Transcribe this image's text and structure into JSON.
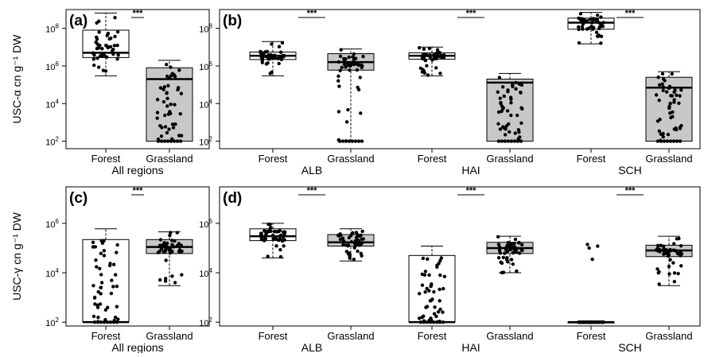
{
  "chart_data": [
    {
      "panel": "(a)",
      "type": "box",
      "ylabel": "USC-α cn g⁻¹ DW",
      "yscale": "log",
      "ylim": [
        40,
        1000000000
      ],
      "yticks": [
        {
          "v": 100,
          "e": "2"
        },
        {
          "v": 10000,
          "e": "4"
        },
        {
          "v": 1000000,
          "e": "6"
        },
        {
          "v": 100000000,
          "e": "8"
        }
      ],
      "groups": [
        {
          "label": "All regions",
          "sig": "***",
          "boxes": [
            {
              "category": "Forest",
              "fill": "#ffffff",
              "whisker_low": 300000,
              "q1": 2800000,
              "median": 5000000,
              "q3": 80000000,
              "whisker_high": 650000000,
              "low_points": []
            },
            {
              "category": "Grassland",
              "fill": "#c8c8c8",
              "whisker_low": 100,
              "q1": 100,
              "median": 200000,
              "q3": 800000,
              "whisker_high": 2000000,
              "low_points": [
                100
              ]
            }
          ]
        }
      ]
    },
    {
      "panel": "(b)",
      "type": "box",
      "yscale": "log",
      "ylim": [
        40,
        1000000000
      ],
      "yticks": [
        {
          "v": 100,
          "e": "2"
        },
        {
          "v": 10000,
          "e": "4"
        },
        {
          "v": 1000000,
          "e": "6"
        },
        {
          "v": 100000000,
          "e": "8"
        }
      ],
      "groups": [
        {
          "label": "ALB",
          "sig": "***",
          "boxes": [
            {
              "category": "Forest",
              "fill": "#ffffff",
              "whisker_low": 300000,
              "q1": 2200000,
              "median": 3500000,
              "q3": 5500000,
              "whisker_high": 20000000,
              "low_points": []
            },
            {
              "category": "Grassland",
              "fill": "#c8c8c8",
              "whisker_low": 100,
              "q1": 600000,
              "median": 1600000,
              "q3": 4500000,
              "whisker_high": 8000000,
              "low_points": [
                100
              ]
            }
          ]
        },
        {
          "label": "HAI",
          "sig": "***",
          "boxes": [
            {
              "category": "Forest",
              "fill": "#ffffff",
              "whisker_low": 300000,
              "q1": 2300000,
              "median": 3500000,
              "q3": 5000000,
              "whisker_high": 10000000,
              "low_points": []
            },
            {
              "category": "Grassland",
              "fill": "#c8c8c8",
              "whisker_low": 100,
              "q1": 100,
              "median": 130000,
              "q3": 200000,
              "whisker_high": 400000,
              "low_points": [
                100
              ]
            }
          ]
        },
        {
          "label": "SCH",
          "sig": "***",
          "boxes": [
            {
              "category": "Forest",
              "fill": "#ffffff",
              "whisker_low": 15000000,
              "q1": 90000000,
              "median": 200000000,
              "q3": 350000000,
              "whisker_high": 700000000,
              "low_points": []
            },
            {
              "category": "Grassland",
              "fill": "#c8c8c8",
              "whisker_low": 100,
              "q1": 100,
              "median": 70000,
              "q3": 250000,
              "whisker_high": 500000,
              "low_points": [
                100
              ]
            }
          ]
        }
      ]
    },
    {
      "panel": "(c)",
      "type": "box",
      "ylabel": "USC-γ cn g⁻¹ DW",
      "yscale": "log",
      "ylim": [
        70,
        30000000
      ],
      "yticks": [
        {
          "v": 100,
          "e": "2"
        },
        {
          "v": 10000,
          "e": "4"
        },
        {
          "v": 1000000,
          "e": "6"
        }
      ],
      "groups": [
        {
          "label": "All regions",
          "sig": "***",
          "boxes": [
            {
              "category": "Forest",
              "fill": "#ffffff",
              "whisker_low": 100,
              "q1": 100,
              "median": 100,
              "q3": 220000,
              "whisker_high": 600000,
              "low_points": [
                100
              ]
            },
            {
              "category": "Grassland",
              "fill": "#c8c8c8",
              "whisker_low": 3000,
              "q1": 60000,
              "median": 110000,
              "q3": 220000,
              "whisker_high": 450000,
              "low_points": []
            }
          ]
        }
      ]
    },
    {
      "panel": "(d)",
      "type": "box",
      "yscale": "log",
      "ylim": [
        70,
        30000000
      ],
      "yticks": [
        {
          "v": 100,
          "e": "2"
        },
        {
          "v": 10000,
          "e": "4"
        },
        {
          "v": 1000000,
          "e": "6"
        }
      ],
      "groups": [
        {
          "label": "ALB",
          "sig": "***",
          "boxes": [
            {
              "category": "Forest",
              "fill": "#ffffff",
              "whisker_low": 40000,
              "q1": 200000,
              "median": 300000,
              "q3": 600000,
              "whisker_high": 1000000,
              "low_points": []
            },
            {
              "category": "Grassland",
              "fill": "#c8c8c8",
              "whisker_low": 30000,
              "q1": 120000,
              "median": 170000,
              "q3": 350000,
              "whisker_high": 600000,
              "low_points": []
            }
          ]
        },
        {
          "label": "HAI",
          "sig": "***",
          "boxes": [
            {
              "category": "Forest",
              "fill": "#ffffff",
              "whisker_low": 100,
              "q1": 100,
              "median": 100,
              "q3": 50000,
              "whisker_high": 120000,
              "low_points": [
                100
              ]
            },
            {
              "category": "Grassland",
              "fill": "#c8c8c8",
              "whisker_low": 10000,
              "q1": 60000,
              "median": 100000,
              "q3": 170000,
              "whisker_high": 300000,
              "low_points": []
            }
          ]
        },
        {
          "label": "SCH",
          "sig": "***",
          "boxes": [
            {
              "category": "Forest",
              "fill": "#ffffff",
              "whisker_low": 100,
              "q1": 100,
              "median": 100,
              "q3": 100,
              "whisker_high": 100,
              "low_points": [
                100
              ],
              "outliers": [
                35000,
                100000,
                120000,
                140000
              ]
            },
            {
              "category": "Grassland",
              "fill": "#c8c8c8",
              "whisker_low": 3000,
              "q1": 45000,
              "median": 80000,
              "q3": 130000,
              "whisker_high": 300000,
              "low_points": []
            }
          ]
        }
      ]
    }
  ]
}
